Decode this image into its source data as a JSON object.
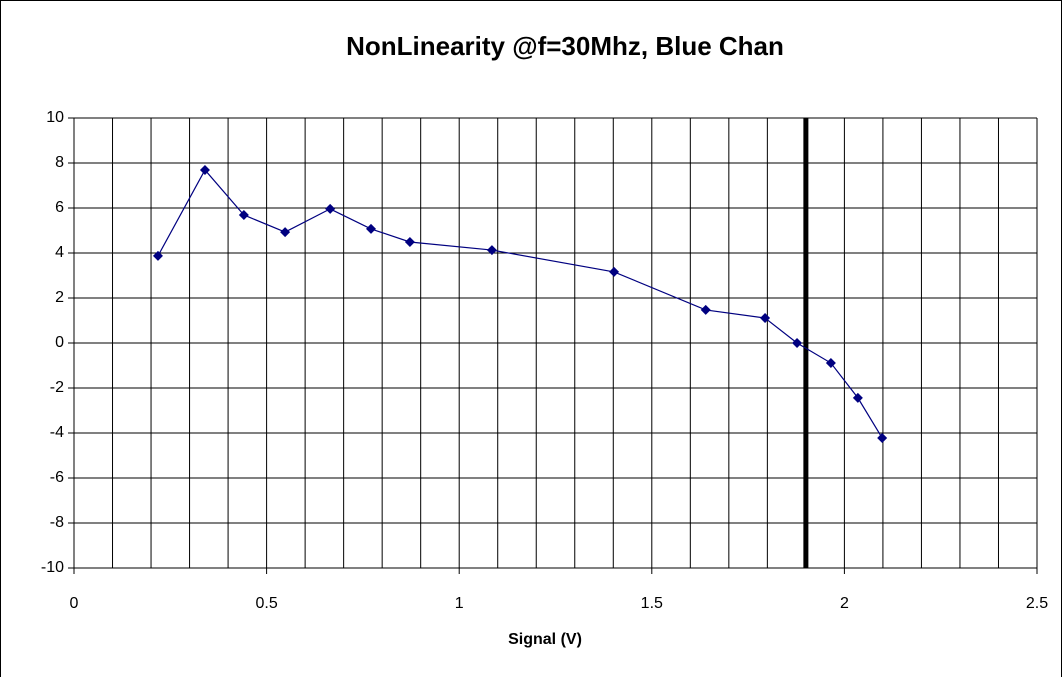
{
  "chart_data": {
    "type": "line",
    "title": "NonLinearity @f=30Mhz, Blue Chan",
    "x_label": "Signal (V)",
    "x": [
      0.218,
      0.34,
      0.441,
      0.548,
      0.665,
      0.771,
      0.872,
      1.085,
      1.402,
      1.64,
      1.794,
      1.877,
      1.965,
      2.035,
      2.098
    ],
    "series": [
      {
        "name": "Blue Chan",
        "color": "#000080",
        "values": [
          3.87,
          7.69,
          5.69,
          4.93,
          5.96,
          5.07,
          4.49,
          4.13,
          3.16,
          1.47,
          1.11,
          0,
          -0.89,
          -2.44,
          -4.22
        ]
      }
    ],
    "xlim": [
      0,
      2.5
    ],
    "xticks": [
      0,
      0.5,
      1,
      1.5,
      2,
      2.5
    ],
    "xgrid": [
      0.1,
      0.2,
      0.3,
      0.4,
      0.5,
      0.6,
      0.7,
      0.8,
      0.9,
      1,
      1.1,
      1.2,
      1.3,
      1.4,
      1.5,
      1.6,
      1.7,
      1.8,
      1.9,
      2,
      2.1,
      2.2,
      2.3,
      2.4,
      2.5
    ],
    "ylim": [
      -10,
      10
    ],
    "yticks": [
      -10,
      -8,
      -6,
      -4,
      -2,
      0,
      2,
      4,
      6,
      8,
      10
    ],
    "grid": true,
    "vline": 1.9
  }
}
